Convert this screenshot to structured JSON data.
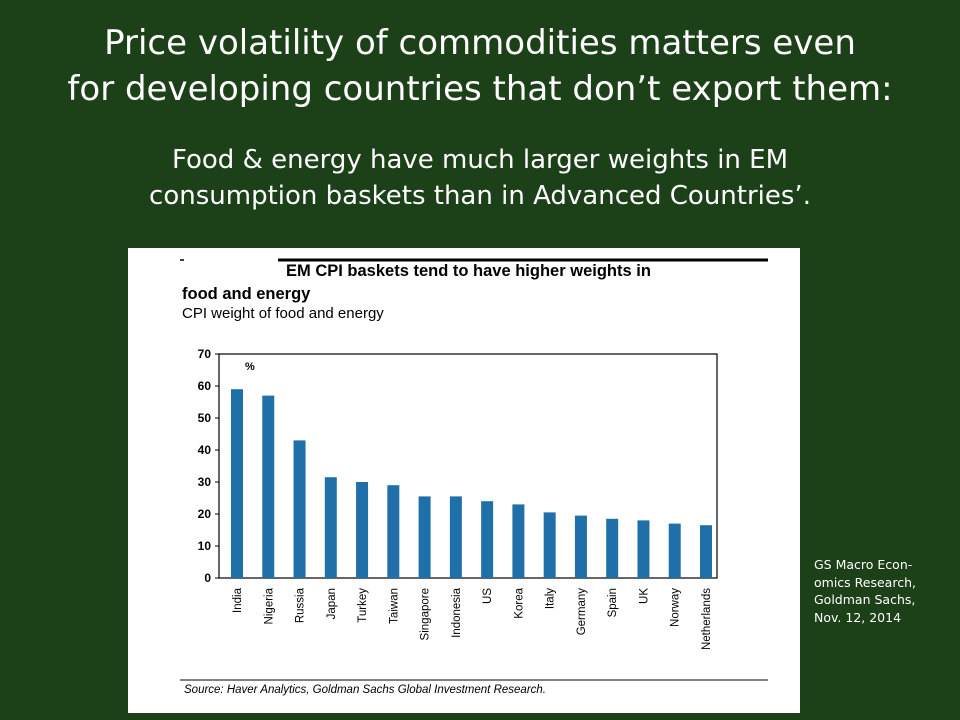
{
  "slide": {
    "title_line1": "Price volatility of commodities matters even",
    "title_line2": "for developing countries that don’t export them:",
    "subtitle_line1": "Food & energy have much larger weights in EM",
    "subtitle_line2": "consumption baskets than in Advanced Countries’.",
    "citation": [
      "GS Macro Econ-",
      "omics Research,",
      "Goldman Sachs,",
      "Nov. 12, 2014"
    ]
  },
  "chart_data": {
    "type": "bar",
    "title": "EM CPI baskets tend to have higher weights in food and energy",
    "title_line1": "EM CPI baskets tend to have higher weights in",
    "title_line2": "food and energy",
    "subtitle": "CPI weight of food and energy",
    "unit_label": "%",
    "source": "Source: Haver Analytics, Goldman Sachs Global Investment Research.",
    "categories": [
      "India",
      "Nigeria",
      "Russia",
      "Japan",
      "Turkey",
      "Taiwan",
      "Singapore",
      "Indonesia",
      "US",
      "Korea",
      "Italy",
      "Germany",
      "Spain",
      "UK",
      "Norway",
      "Netherlands"
    ],
    "values": [
      59,
      57,
      43,
      31.5,
      30,
      29,
      25.5,
      25.5,
      24,
      23,
      20.5,
      19.5,
      18.5,
      18,
      17,
      16.5
    ],
    "ylim": [
      0,
      70
    ],
    "yticks": [
      "0",
      "10",
      "20",
      "30",
      "40",
      "50",
      "60",
      "70"
    ],
    "grid": false,
    "bar_color": "#1f6fa8"
  }
}
